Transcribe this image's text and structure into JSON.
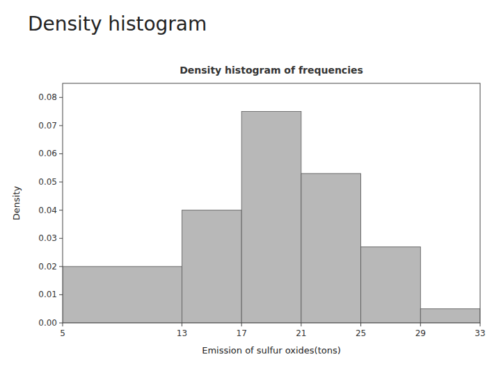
{
  "chart_data": {
    "type": "histogram",
    "title": "Density histogram",
    "subtitle": "Density histogram of frequencies",
    "x_label": "Emission of sulfur oxides(tons)",
    "y_label": "Density",
    "bins": [
      5,
      13,
      17,
      21,
      25,
      29,
      33
    ],
    "values": [
      0.02,
      0.04,
      0.075,
      0.053,
      0.027,
      0.005
    ],
    "color": "#b8b8b8",
    "xlim": [
      5,
      33
    ],
    "ylim": [
      0,
      0.085
    ],
    "xticks": [
      5,
      13,
      17,
      21,
      25,
      29,
      33
    ],
    "yticks": [
      {
        "value": 0,
        "label": "0.00"
      },
      0.01,
      0.02,
      0.03,
      0.04,
      0.05,
      0.06,
      0.07,
      0.08
    ],
    "grid": false
  }
}
